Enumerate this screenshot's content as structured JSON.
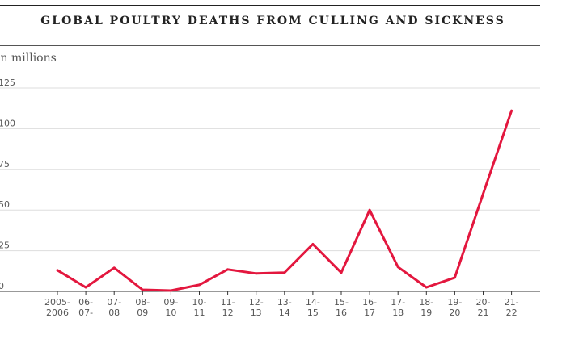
{
  "chart_data": {
    "type": "line",
    "title": "GLOBAL POULTRY DEATHS FROM CULLING AND SICKNESS",
    "ylabel": "In millions",
    "ylim": [
      0,
      125
    ],
    "yticks": [
      0,
      25,
      50,
      75,
      100,
      125
    ],
    "ytick_labels": [
      "0",
      "25",
      "50",
      "75",
      "100",
      "125"
    ],
    "grid": true,
    "categories": [
      [
        "2005-",
        "2006"
      ],
      [
        "06-",
        "07-"
      ],
      [
        "07-",
        "08"
      ],
      [
        "08-",
        "09"
      ],
      [
        "09-",
        "10"
      ],
      [
        "10-",
        "11"
      ],
      [
        "11-",
        "12"
      ],
      [
        "12-",
        "13"
      ],
      [
        "13-",
        "14"
      ],
      [
        "14-",
        "15"
      ],
      [
        "15-",
        "16"
      ],
      [
        "16-",
        "17"
      ],
      [
        "17-",
        "18"
      ],
      [
        "18-",
        "19"
      ],
      [
        "19-",
        "20"
      ],
      [
        "20-",
        "21"
      ],
      [
        "21-",
        "22"
      ]
    ],
    "series": [
      {
        "values": [
          13,
          2.5,
          14.5,
          1,
          0.5,
          4,
          13.5,
          11,
          11.5,
          29,
          11.5,
          50,
          15,
          2.5,
          8.5,
          60,
          111
        ],
        "color": "#e3173e"
      }
    ]
  }
}
